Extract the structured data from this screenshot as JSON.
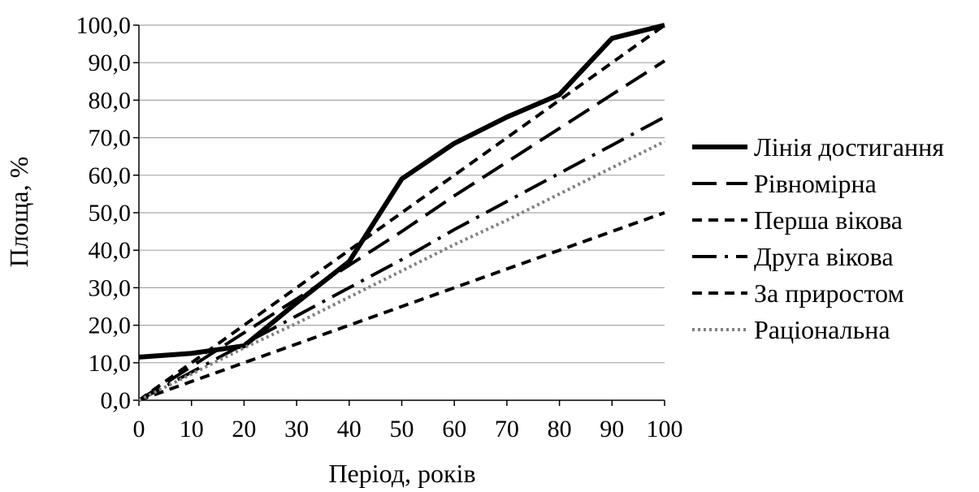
{
  "chart_data": {
    "type": "line",
    "xlabel": "Період, років",
    "ylabel": "Площа, %",
    "xlim": [
      0,
      100
    ],
    "ylim": [
      0,
      100
    ],
    "x_ticks": [
      "0",
      "10",
      "20",
      "30",
      "40",
      "50",
      "60",
      "70",
      "80",
      "90",
      "100"
    ],
    "y_ticks": [
      "0,0",
      "10,0",
      "20,0",
      "30,0",
      "40,0",
      "50,0",
      "60,0",
      "70,0",
      "80,0",
      "90,0",
      "100,0"
    ],
    "grid": "horizontal",
    "legend_position": "right",
    "x": [
      0,
      10,
      20,
      30,
      40,
      50,
      60,
      70,
      80,
      90,
      100
    ],
    "series": [
      {
        "name": "Лінія достигання",
        "style": "solid-thick",
        "color": "#000000",
        "values": [
          11.5,
          12.5,
          14.5,
          26.0,
          37.0,
          59.0,
          68.5,
          75.5,
          81.5,
          96.5,
          100.0
        ]
      },
      {
        "name": "Рівномірна",
        "style": "long-dash",
        "color": "#000000",
        "values": [
          0,
          9.0,
          18.0,
          27.0,
          36.0,
          45.0,
          54.5,
          63.5,
          72.5,
          81.5,
          90.5
        ]
      },
      {
        "name": "Перша вікова",
        "style": "short-dash",
        "color": "#000000",
        "values": [
          0,
          10.0,
          20.0,
          30.0,
          40.0,
          50.0,
          60.0,
          70.0,
          80.0,
          90.0,
          100.0
        ]
      },
      {
        "name": "Друга вікова",
        "style": "dash-dot",
        "color": "#000000",
        "values": [
          0,
          7.5,
          15.0,
          22.5,
          30.0,
          37.5,
          45.5,
          53.0,
          60.5,
          68.0,
          75.5
        ]
      },
      {
        "name": "За приростом",
        "style": "short-dash",
        "color": "#000000",
        "values": [
          0,
          5.0,
          10.0,
          15.0,
          20.0,
          25.0,
          30.0,
          35.0,
          40.0,
          45.0,
          50.0
        ]
      },
      {
        "name": "Раціональна",
        "style": "dotted",
        "color": "#808080",
        "values": [
          0,
          7.0,
          14.0,
          20.5,
          27.5,
          34.5,
          41.5,
          48.0,
          55.0,
          62.0,
          69.0
        ]
      }
    ]
  }
}
